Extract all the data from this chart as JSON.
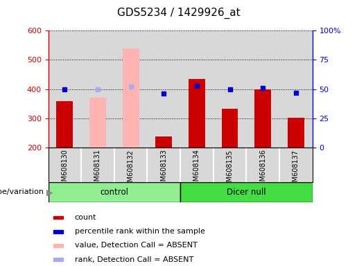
{
  "title": "GDS5234 / 1429926_at",
  "samples": [
    "GSM608130",
    "GSM608131",
    "GSM608132",
    "GSM608133",
    "GSM608134",
    "GSM608135",
    "GSM608136",
    "GSM608137"
  ],
  "count_values": [
    360,
    null,
    null,
    238,
    435,
    332,
    400,
    301
  ],
  "count_absent_values": [
    null,
    370,
    540,
    null,
    null,
    null,
    null,
    null
  ],
  "percentile_rank": [
    50,
    null,
    null,
    46,
    53,
    50,
    51,
    47
  ],
  "percentile_rank_absent": [
    null,
    50,
    52,
    null,
    null,
    null,
    null,
    null
  ],
  "ylim_left": [
    200,
    600
  ],
  "ylim_right": [
    0,
    100
  ],
  "yticks_left": [
    200,
    300,
    400,
    500,
    600
  ],
  "yticks_right": [
    0,
    25,
    50,
    75,
    100
  ],
  "ytick_right_labels": [
    "0",
    "25",
    "50",
    "75",
    "100%"
  ],
  "groups": [
    {
      "name": "control",
      "start": 0,
      "end": 3,
      "color": "#90ee90"
    },
    {
      "name": "Dicer null",
      "start": 4,
      "end": 7,
      "color": "#44dd44"
    }
  ],
  "bar_color_red": "#cc0000",
  "bar_color_pink": "#ffb3b3",
  "dot_color_blue": "#0000cc",
  "dot_color_lightblue": "#aaaaee",
  "axis_color_left": "#cc0000",
  "axis_color_right": "#0000cc",
  "bg_color": "#d8d8d8",
  "legend_labels": [
    "count",
    "percentile rank within the sample",
    "value, Detection Call = ABSENT",
    "rank, Detection Call = ABSENT"
  ],
  "legend_colors": [
    "#cc0000",
    "#0000cc",
    "#ffb3b3",
    "#aaaaee"
  ],
  "genotype_label": "genotype/variation"
}
